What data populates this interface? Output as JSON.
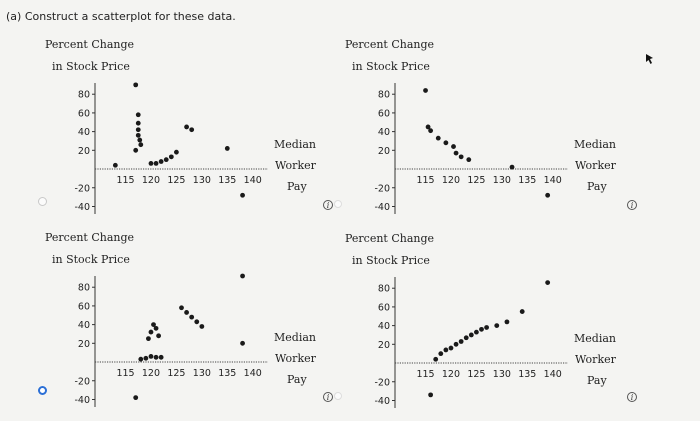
{
  "question": "(a) Construct a scatterplot for these data.",
  "options": [
    {
      "id": "A",
      "selected": false,
      "info_glyph": "i",
      "chart_data": {
        "type": "scatter",
        "ylabel": "Percent Change in Stock Price",
        "xlabel": "Median Worker Pay",
        "x_ticks": [
          "115",
          "120",
          "125",
          "130",
          "135",
          "140"
        ],
        "y_ticks": [
          "80",
          "60",
          "40",
          "20",
          "-20",
          "-40"
        ],
        "xlim": [
          109,
          143
        ],
        "ylim": [
          -48,
          92
        ],
        "points": [
          [
            113,
            4
          ],
          [
            117,
            90
          ],
          [
            117.5,
            58
          ],
          [
            117.5,
            49
          ],
          [
            117.5,
            42
          ],
          [
            117.5,
            36
          ],
          [
            117.8,
            31
          ],
          [
            118,
            26
          ],
          [
            117,
            20
          ],
          [
            120,
            6
          ],
          [
            121,
            6
          ],
          [
            122,
            8
          ],
          [
            123,
            10
          ],
          [
            124,
            13
          ],
          [
            125,
            18
          ],
          [
            127,
            45
          ],
          [
            128,
            42
          ],
          [
            135,
            22
          ],
          [
            138,
            -28
          ]
        ]
      }
    },
    {
      "id": "B",
      "selected": false,
      "info_glyph": "i",
      "chart_data": {
        "type": "scatter",
        "ylabel": "Percent Change in Stock Price",
        "xlabel": "Median Worker Pay",
        "x_ticks": [
          "115",
          "120",
          "125",
          "130",
          "135",
          "140"
        ],
        "y_ticks": [
          "80",
          "60",
          "40",
          "20",
          "-20",
          "-40"
        ],
        "xlim": [
          109,
          143
        ],
        "ylim": [
          -48,
          92
        ],
        "points": [
          [
            115,
            84
          ],
          [
            115.5,
            45
          ],
          [
            116,
            41
          ],
          [
            117.5,
            33
          ],
          [
            119,
            28
          ],
          [
            120.5,
            24
          ],
          [
            121,
            17
          ],
          [
            122,
            13
          ],
          [
            123.5,
            10
          ],
          [
            132,
            2
          ],
          [
            139,
            -28
          ]
        ]
      }
    },
    {
      "id": "C",
      "selected": true,
      "info_glyph": "i",
      "chart_data": {
        "type": "scatter",
        "ylabel": "Percent Change in Stock Price",
        "xlabel": "Median Worker Pay",
        "x_ticks": [
          "115",
          "120",
          "125",
          "130",
          "135",
          "140"
        ],
        "y_ticks": [
          "80",
          "60",
          "40",
          "20",
          "-20",
          "-40"
        ],
        "xlim": [
          109,
          143
        ],
        "ylim": [
          -48,
          92
        ],
        "points": [
          [
            117,
            -38
          ],
          [
            118,
            3
          ],
          [
            119,
            4
          ],
          [
            120,
            6
          ],
          [
            121,
            5
          ],
          [
            122,
            5
          ],
          [
            119.5,
            25
          ],
          [
            120,
            32
          ],
          [
            121,
            36
          ],
          [
            120.5,
            40
          ],
          [
            121.5,
            28
          ],
          [
            126,
            58
          ],
          [
            127,
            53
          ],
          [
            128,
            48
          ],
          [
            129,
            43
          ],
          [
            130,
            38
          ],
          [
            138,
            92
          ],
          [
            138,
            20
          ]
        ]
      }
    },
    {
      "id": "D",
      "selected": false,
      "info_glyph": "i",
      "chart_data": {
        "type": "scatter",
        "ylabel": "Percent Change in Stock Price",
        "xlabel": "Median Worker Pay",
        "x_ticks": [
          "115",
          "120",
          "125",
          "130",
          "135",
          "140"
        ],
        "y_ticks": [
          "80",
          "60",
          "40",
          "20",
          "-20",
          "-40"
        ],
        "xlim": [
          109,
          143
        ],
        "ylim": [
          -48,
          92
        ],
        "points": [
          [
            116,
            -34
          ],
          [
            117,
            4
          ],
          [
            118,
            10
          ],
          [
            119,
            14
          ],
          [
            120,
            16
          ],
          [
            121,
            20
          ],
          [
            122,
            23
          ],
          [
            123,
            27
          ],
          [
            124,
            30
          ],
          [
            125,
            33
          ],
          [
            126,
            36
          ],
          [
            127,
            38
          ],
          [
            129,
            40
          ],
          [
            131,
            44
          ],
          [
            134,
            55
          ],
          [
            139,
            86
          ]
        ]
      }
    }
  ]
}
